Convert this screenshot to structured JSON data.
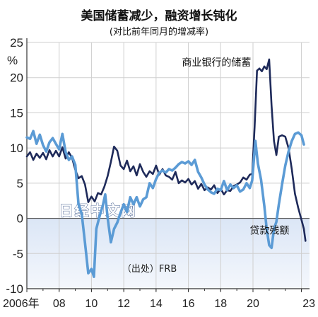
{
  "chart_data": {
    "type": "line",
    "title": "美国储蓄减少，融资增长钝化",
    "subtitle": "(对比前年同月的增减率)",
    "ylabel": "%",
    "ylim": [
      -10,
      25
    ],
    "yticks": [
      25,
      20,
      15,
      10,
      5,
      0,
      -5,
      -10
    ],
    "xlim": [
      2006,
      2023.5
    ],
    "xticks": [
      {
        "x": 2006,
        "label": "2006年"
      },
      {
        "x": 2008,
        "label": "08"
      },
      {
        "x": 2010,
        "label": "10"
      },
      {
        "x": 2012,
        "label": "12"
      },
      {
        "x": 2014,
        "label": "14"
      },
      {
        "x": 2016,
        "label": "16"
      },
      {
        "x": 2018,
        "label": "18"
      },
      {
        "x": 2020,
        "label": "20"
      },
      {
        "x": 2023,
        "label": "23"
      }
    ],
    "grid": true,
    "negative_region_shaded": true,
    "source": "（出处）FRB",
    "watermark": "日经中文网",
    "colors": {
      "deposits": "#1e2a5a",
      "loans": "#5b9bd5",
      "shade_top": "#dbe6f6",
      "shade_bottom": "#f4f7fc",
      "gridline": "#cfcfcf"
    },
    "series": [
      {
        "name": "商业银行的储蓄",
        "key": "deposits",
        "points": [
          [
            2006.0,
            8.8
          ],
          [
            2006.2,
            9.4
          ],
          [
            2006.4,
            8.3
          ],
          [
            2006.6,
            9.2
          ],
          [
            2006.8,
            8.6
          ],
          [
            2007.0,
            9.3
          ],
          [
            2007.2,
            8.4
          ],
          [
            2007.4,
            9.7
          ],
          [
            2007.6,
            8.8
          ],
          [
            2007.8,
            9.6
          ],
          [
            2008.0,
            8.8
          ],
          [
            2008.2,
            10.1
          ],
          [
            2008.4,
            8.5
          ],
          [
            2008.6,
            9.4
          ],
          [
            2008.8,
            8.6
          ],
          [
            2009.0,
            6.9
          ],
          [
            2009.2,
            5.7
          ],
          [
            2009.4,
            6.0
          ],
          [
            2009.6,
            4.8
          ],
          [
            2009.8,
            2.3
          ],
          [
            2010.0,
            3.1
          ],
          [
            2010.2,
            2.4
          ],
          [
            2010.4,
            3.6
          ],
          [
            2010.6,
            3.4
          ],
          [
            2010.8,
            4.5
          ],
          [
            2011.0,
            6.0
          ],
          [
            2011.2,
            8.0
          ],
          [
            2011.4,
            10.2
          ],
          [
            2011.6,
            9.6
          ],
          [
            2011.8,
            7.5
          ],
          [
            2012.0,
            7.0
          ],
          [
            2012.2,
            8.2
          ],
          [
            2012.4,
            6.7
          ],
          [
            2012.6,
            7.4
          ],
          [
            2012.8,
            6.1
          ],
          [
            2013.0,
            7.7
          ],
          [
            2013.2,
            6.6
          ],
          [
            2013.4,
            5.9
          ],
          [
            2013.6,
            6.7
          ],
          [
            2013.8,
            6.3
          ],
          [
            2014.0,
            7.5
          ],
          [
            2014.2,
            6.2
          ],
          [
            2014.4,
            7.0
          ],
          [
            2014.6,
            6.1
          ],
          [
            2014.8,
            5.9
          ],
          [
            2015.0,
            5.5
          ],
          [
            2015.2,
            6.6
          ],
          [
            2015.4,
            5.0
          ],
          [
            2015.6,
            5.4
          ],
          [
            2015.8,
            5.1
          ],
          [
            2016.0,
            5.6
          ],
          [
            2016.2,
            4.8
          ],
          [
            2016.4,
            5.3
          ],
          [
            2016.6,
            4.2
          ],
          [
            2016.8,
            4.9
          ],
          [
            2017.0,
            4.0
          ],
          [
            2017.2,
            4.4
          ],
          [
            2017.4,
            4.1
          ],
          [
            2017.6,
            4.7
          ],
          [
            2017.8,
            3.6
          ],
          [
            2018.0,
            4.2
          ],
          [
            2018.2,
            3.4
          ],
          [
            2018.4,
            4.0
          ],
          [
            2018.6,
            3.9
          ],
          [
            2018.8,
            4.6
          ],
          [
            2019.0,
            4.8
          ],
          [
            2019.2,
            5.1
          ],
          [
            2019.4,
            5.8
          ],
          [
            2019.6,
            5.5
          ],
          [
            2019.8,
            6.2
          ],
          [
            2019.95,
            6.3
          ],
          [
            2020.1,
            13.0
          ],
          [
            2020.25,
            21.0
          ],
          [
            2020.4,
            21.3
          ],
          [
            2020.55,
            20.9
          ],
          [
            2020.7,
            21.6
          ],
          [
            2020.85,
            21.2
          ],
          [
            2021.0,
            22.6
          ],
          [
            2021.15,
            16.0
          ],
          [
            2021.3,
            11.0
          ],
          [
            2021.45,
            9.0
          ],
          [
            2021.6,
            11.6
          ],
          [
            2021.8,
            11.8
          ],
          [
            2022.0,
            11.6
          ],
          [
            2022.2,
            10.0
          ],
          [
            2022.4,
            7.0
          ],
          [
            2022.6,
            3.5
          ],
          [
            2022.8,
            1.5
          ],
          [
            2023.0,
            -0.2
          ],
          [
            2023.15,
            -1.5
          ],
          [
            2023.25,
            -3.2
          ]
        ]
      },
      {
        "name": "贷款残额",
        "key": "loans",
        "points": [
          [
            2006.0,
            11.5
          ],
          [
            2006.2,
            11.3
          ],
          [
            2006.4,
            12.4
          ],
          [
            2006.6,
            10.6
          ],
          [
            2006.8,
            11.9
          ],
          [
            2007.0,
            10.4
          ],
          [
            2007.2,
            9.5
          ],
          [
            2007.4,
            10.8
          ],
          [
            2007.6,
            11.4
          ],
          [
            2007.8,
            10.6
          ],
          [
            2008.0,
            9.8
          ],
          [
            2008.2,
            12.0
          ],
          [
            2008.4,
            9.4
          ],
          [
            2008.6,
            8.3
          ],
          [
            2008.8,
            8.8
          ],
          [
            2009.0,
            7.6
          ],
          [
            2009.2,
            2.0
          ],
          [
            2009.4,
            0.6
          ],
          [
            2009.6,
            -3.5
          ],
          [
            2009.8,
            -7.8
          ],
          [
            2010.0,
            -7.2
          ],
          [
            2010.15,
            -8.3
          ],
          [
            2010.3,
            -1.5
          ],
          [
            2010.5,
            0.3
          ],
          [
            2010.7,
            1.8
          ],
          [
            2010.85,
            3.4
          ],
          [
            2011.0,
            0.1
          ],
          [
            2011.2,
            -3.4
          ],
          [
            2011.4,
            -1.5
          ],
          [
            2011.6,
            -0.6
          ],
          [
            2011.8,
            0.8
          ],
          [
            2012.0,
            2.0
          ],
          [
            2012.2,
            0.9
          ],
          [
            2012.4,
            3.0
          ],
          [
            2012.6,
            2.0
          ],
          [
            2012.8,
            3.0
          ],
          [
            2013.0,
            1.7
          ],
          [
            2013.2,
            2.7
          ],
          [
            2013.4,
            3.0
          ],
          [
            2013.6,
            5.0
          ],
          [
            2013.8,
            4.3
          ],
          [
            2014.0,
            5.6
          ],
          [
            2014.2,
            6.5
          ],
          [
            2014.4,
            6.8
          ],
          [
            2014.6,
            6.5
          ],
          [
            2014.8,
            7.0
          ],
          [
            2015.0,
            6.8
          ],
          [
            2015.2,
            7.2
          ],
          [
            2015.4,
            7.7
          ],
          [
            2015.6,
            8.0
          ],
          [
            2015.8,
            7.8
          ],
          [
            2016.0,
            8.1
          ],
          [
            2016.2,
            7.6
          ],
          [
            2016.4,
            8.3
          ],
          [
            2016.6,
            6.6
          ],
          [
            2016.8,
            5.8
          ],
          [
            2017.0,
            4.8
          ],
          [
            2017.2,
            4.1
          ],
          [
            2017.4,
            3.7
          ],
          [
            2017.6,
            3.5
          ],
          [
            2017.8,
            4.2
          ],
          [
            2018.0,
            4.0
          ],
          [
            2018.2,
            5.3
          ],
          [
            2018.4,
            4.0
          ],
          [
            2018.6,
            4.8
          ],
          [
            2018.8,
            4.3
          ],
          [
            2019.0,
            4.7
          ],
          [
            2019.2,
            3.8
          ],
          [
            2019.4,
            4.1
          ],
          [
            2019.6,
            5.0
          ],
          [
            2019.8,
            4.3
          ],
          [
            2019.95,
            5.4
          ],
          [
            2020.15,
            11.0
          ],
          [
            2020.3,
            7.8
          ],
          [
            2020.5,
            5.5
          ],
          [
            2020.7,
            1.8
          ],
          [
            2020.85,
            -1.5
          ],
          [
            2021.0,
            -3.8
          ],
          [
            2021.15,
            -4.2
          ],
          [
            2021.3,
            -1.5
          ],
          [
            2021.45,
            -0.5
          ],
          [
            2021.6,
            2.0
          ],
          [
            2021.8,
            4.8
          ],
          [
            2022.0,
            7.5
          ],
          [
            2022.2,
            9.5
          ],
          [
            2022.4,
            11.0
          ],
          [
            2022.6,
            12.0
          ],
          [
            2022.8,
            12.2
          ],
          [
            2023.0,
            11.8
          ],
          [
            2023.15,
            10.5
          ]
        ]
      }
    ],
    "annotations": {
      "deposits_label": "商业银行的储蓄",
      "loans_label": "贷款残额"
    }
  }
}
